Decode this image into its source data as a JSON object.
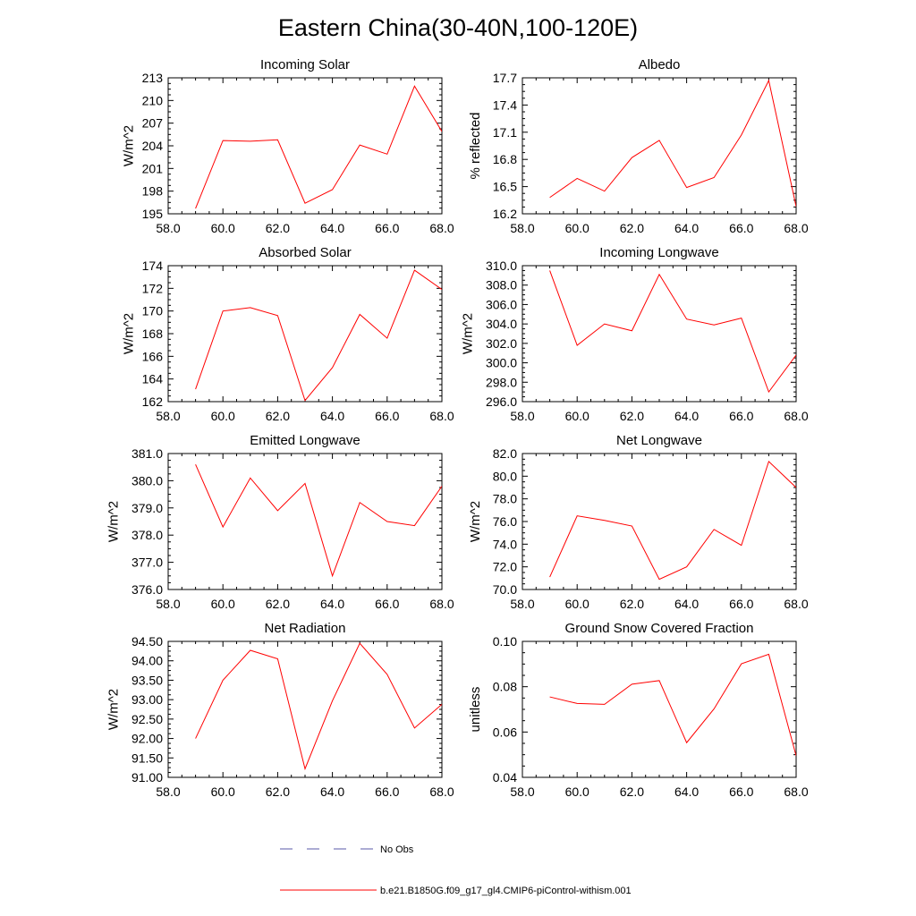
{
  "title": "Eastern China(30-40N,100-120E)",
  "legend": {
    "entries": [
      {
        "label": "No Obs",
        "color": "#5a5aa8",
        "dash": "dashed"
      },
      {
        "label": "b.e21.B1850G.f09_g17_gl4.CMIP6-piControl-withism.001",
        "color": "#ff0000",
        "dash": "solid"
      }
    ]
  },
  "chart_data": [
    {
      "type": "line",
      "title": "Incoming Solar",
      "ylabel": "W/m^2",
      "xlabel": "",
      "xlim": [
        58,
        68
      ],
      "ylim": [
        195,
        213
      ],
      "xticks": [
        "58.0",
        "60.0",
        "62.0",
        "64.0",
        "66.0",
        "68.0"
      ],
      "yticks": [
        "195",
        "198",
        "201",
        "204",
        "207",
        "210",
        "213"
      ],
      "series": [
        {
          "color": "#ff0000",
          "x": [
            59,
            60,
            61,
            62,
            63,
            64,
            65,
            66,
            67,
            68
          ],
          "values": [
            195.7,
            204.7,
            204.6,
            204.8,
            196.4,
            198.2,
            204.1,
            202.9,
            211.9,
            205.9
          ]
        }
      ]
    },
    {
      "type": "line",
      "title": "Albedo",
      "ylabel": "% reflected",
      "xlabel": "",
      "xlim": [
        58,
        68
      ],
      "ylim": [
        16.2,
        17.7
      ],
      "xticks": [
        "58.0",
        "60.0",
        "62.0",
        "64.0",
        "66.0",
        "68.0"
      ],
      "yticks": [
        "16.2",
        "16.5",
        "16.8",
        "17.1",
        "17.4",
        "17.7"
      ],
      "series": [
        {
          "color": "#ff0000",
          "x": [
            59,
            60,
            61,
            62,
            63,
            64,
            65,
            66,
            67,
            68
          ],
          "values": [
            16.38,
            16.59,
            16.45,
            16.82,
            17.01,
            16.49,
            16.6,
            17.07,
            17.67,
            16.28
          ]
        }
      ]
    },
    {
      "type": "line",
      "title": "Absorbed Solar",
      "ylabel": "W/m^2",
      "xlabel": "",
      "xlim": [
        58,
        68
      ],
      "ylim": [
        162,
        174
      ],
      "xticks": [
        "58.0",
        "60.0",
        "62.0",
        "64.0",
        "66.0",
        "68.0"
      ],
      "yticks": [
        "162",
        "164",
        "166",
        "168",
        "170",
        "172",
        "174"
      ],
      "series": [
        {
          "color": "#ff0000",
          "x": [
            59,
            60,
            61,
            62,
            63,
            64,
            65,
            66,
            67,
            68
          ],
          "values": [
            163.1,
            170.0,
            170.3,
            169.6,
            162.1,
            165.0,
            169.7,
            167.6,
            173.6,
            171.9
          ]
        }
      ]
    },
    {
      "type": "line",
      "title": "Incoming Longwave",
      "ylabel": "W/m^2",
      "xlabel": "",
      "xlim": [
        58,
        68
      ],
      "ylim": [
        296,
        310
      ],
      "xticks": [
        "58.0",
        "60.0",
        "62.0",
        "64.0",
        "66.0",
        "68.0"
      ],
      "yticks": [
        "296.0",
        "298.0",
        "300.0",
        "302.0",
        "304.0",
        "306.0",
        "308.0",
        "310.0"
      ],
      "series": [
        {
          "color": "#ff0000",
          "x": [
            59,
            60,
            61,
            62,
            63,
            64,
            65,
            66,
            67,
            68
          ],
          "values": [
            309.5,
            301.8,
            304.0,
            303.3,
            309.1,
            304.5,
            303.9,
            304.6,
            297.0,
            300.8
          ]
        }
      ]
    },
    {
      "type": "line",
      "title": "Emitted Longwave",
      "ylabel": "W/m^2",
      "xlabel": "",
      "xlim": [
        58,
        68
      ],
      "ylim": [
        376,
        381
      ],
      "xticks": [
        "58.0",
        "60.0",
        "62.0",
        "64.0",
        "66.0",
        "68.0"
      ],
      "yticks": [
        "376.0",
        "377.0",
        "378.0",
        "379.0",
        "380.0",
        "381.0"
      ],
      "series": [
        {
          "color": "#ff0000",
          "x": [
            59,
            60,
            61,
            62,
            63,
            64,
            65,
            66,
            67,
            68
          ],
          "values": [
            380.6,
            378.3,
            380.1,
            378.9,
            379.9,
            376.5,
            379.2,
            378.5,
            378.35,
            379.8
          ]
        }
      ]
    },
    {
      "type": "line",
      "title": "Net Longwave",
      "ylabel": "W/m^2",
      "xlabel": "",
      "xlim": [
        58,
        68
      ],
      "ylim": [
        70,
        82
      ],
      "xticks": [
        "58.0",
        "60.0",
        "62.0",
        "64.0",
        "66.0",
        "68.0"
      ],
      "yticks": [
        "70.0",
        "72.0",
        "74.0",
        "76.0",
        "78.0",
        "80.0",
        "82.0"
      ],
      "series": [
        {
          "color": "#ff0000",
          "x": [
            59,
            60,
            61,
            62,
            63,
            64,
            65,
            66,
            67,
            68
          ],
          "values": [
            71.1,
            76.5,
            76.1,
            75.6,
            70.9,
            72.0,
            75.3,
            73.9,
            81.3,
            79.0
          ]
        }
      ]
    },
    {
      "type": "line",
      "title": "Net Radiation",
      "ylabel": "W/m^2",
      "xlabel": "",
      "xlim": [
        58,
        68
      ],
      "ylim": [
        91,
        94.5
      ],
      "xticks": [
        "58.0",
        "60.0",
        "62.0",
        "64.0",
        "66.0",
        "68.0"
      ],
      "yticks": [
        "91.00",
        "91.50",
        "92.00",
        "92.50",
        "93.00",
        "93.50",
        "94.00",
        "94.50"
      ],
      "series": [
        {
          "color": "#ff0000",
          "x": [
            59,
            60,
            61,
            62,
            63,
            64,
            65,
            66,
            67,
            68
          ],
          "values": [
            92.0,
            93.5,
            94.27,
            94.05,
            91.22,
            92.97,
            94.45,
            93.65,
            92.27,
            92.88
          ]
        }
      ]
    },
    {
      "type": "line",
      "title": "Ground Snow Covered Fraction",
      "ylabel": "unitless",
      "xlabel": "",
      "xlim": [
        58,
        68
      ],
      "ylim": [
        0.04,
        0.1
      ],
      "xticks": [
        "58.0",
        "60.0",
        "62.0",
        "64.0",
        "66.0",
        "68.0"
      ],
      "yticks": [
        "0.04",
        "0.06",
        "0.08",
        "0.10"
      ],
      "series": [
        {
          "color": "#ff0000",
          "x": [
            59,
            60,
            61,
            62,
            63,
            64,
            65,
            66,
            67,
            68
          ],
          "values": [
            0.0755,
            0.0726,
            0.0722,
            0.0811,
            0.0827,
            0.0553,
            0.0702,
            0.0901,
            0.0943,
            0.0495
          ]
        }
      ]
    }
  ]
}
